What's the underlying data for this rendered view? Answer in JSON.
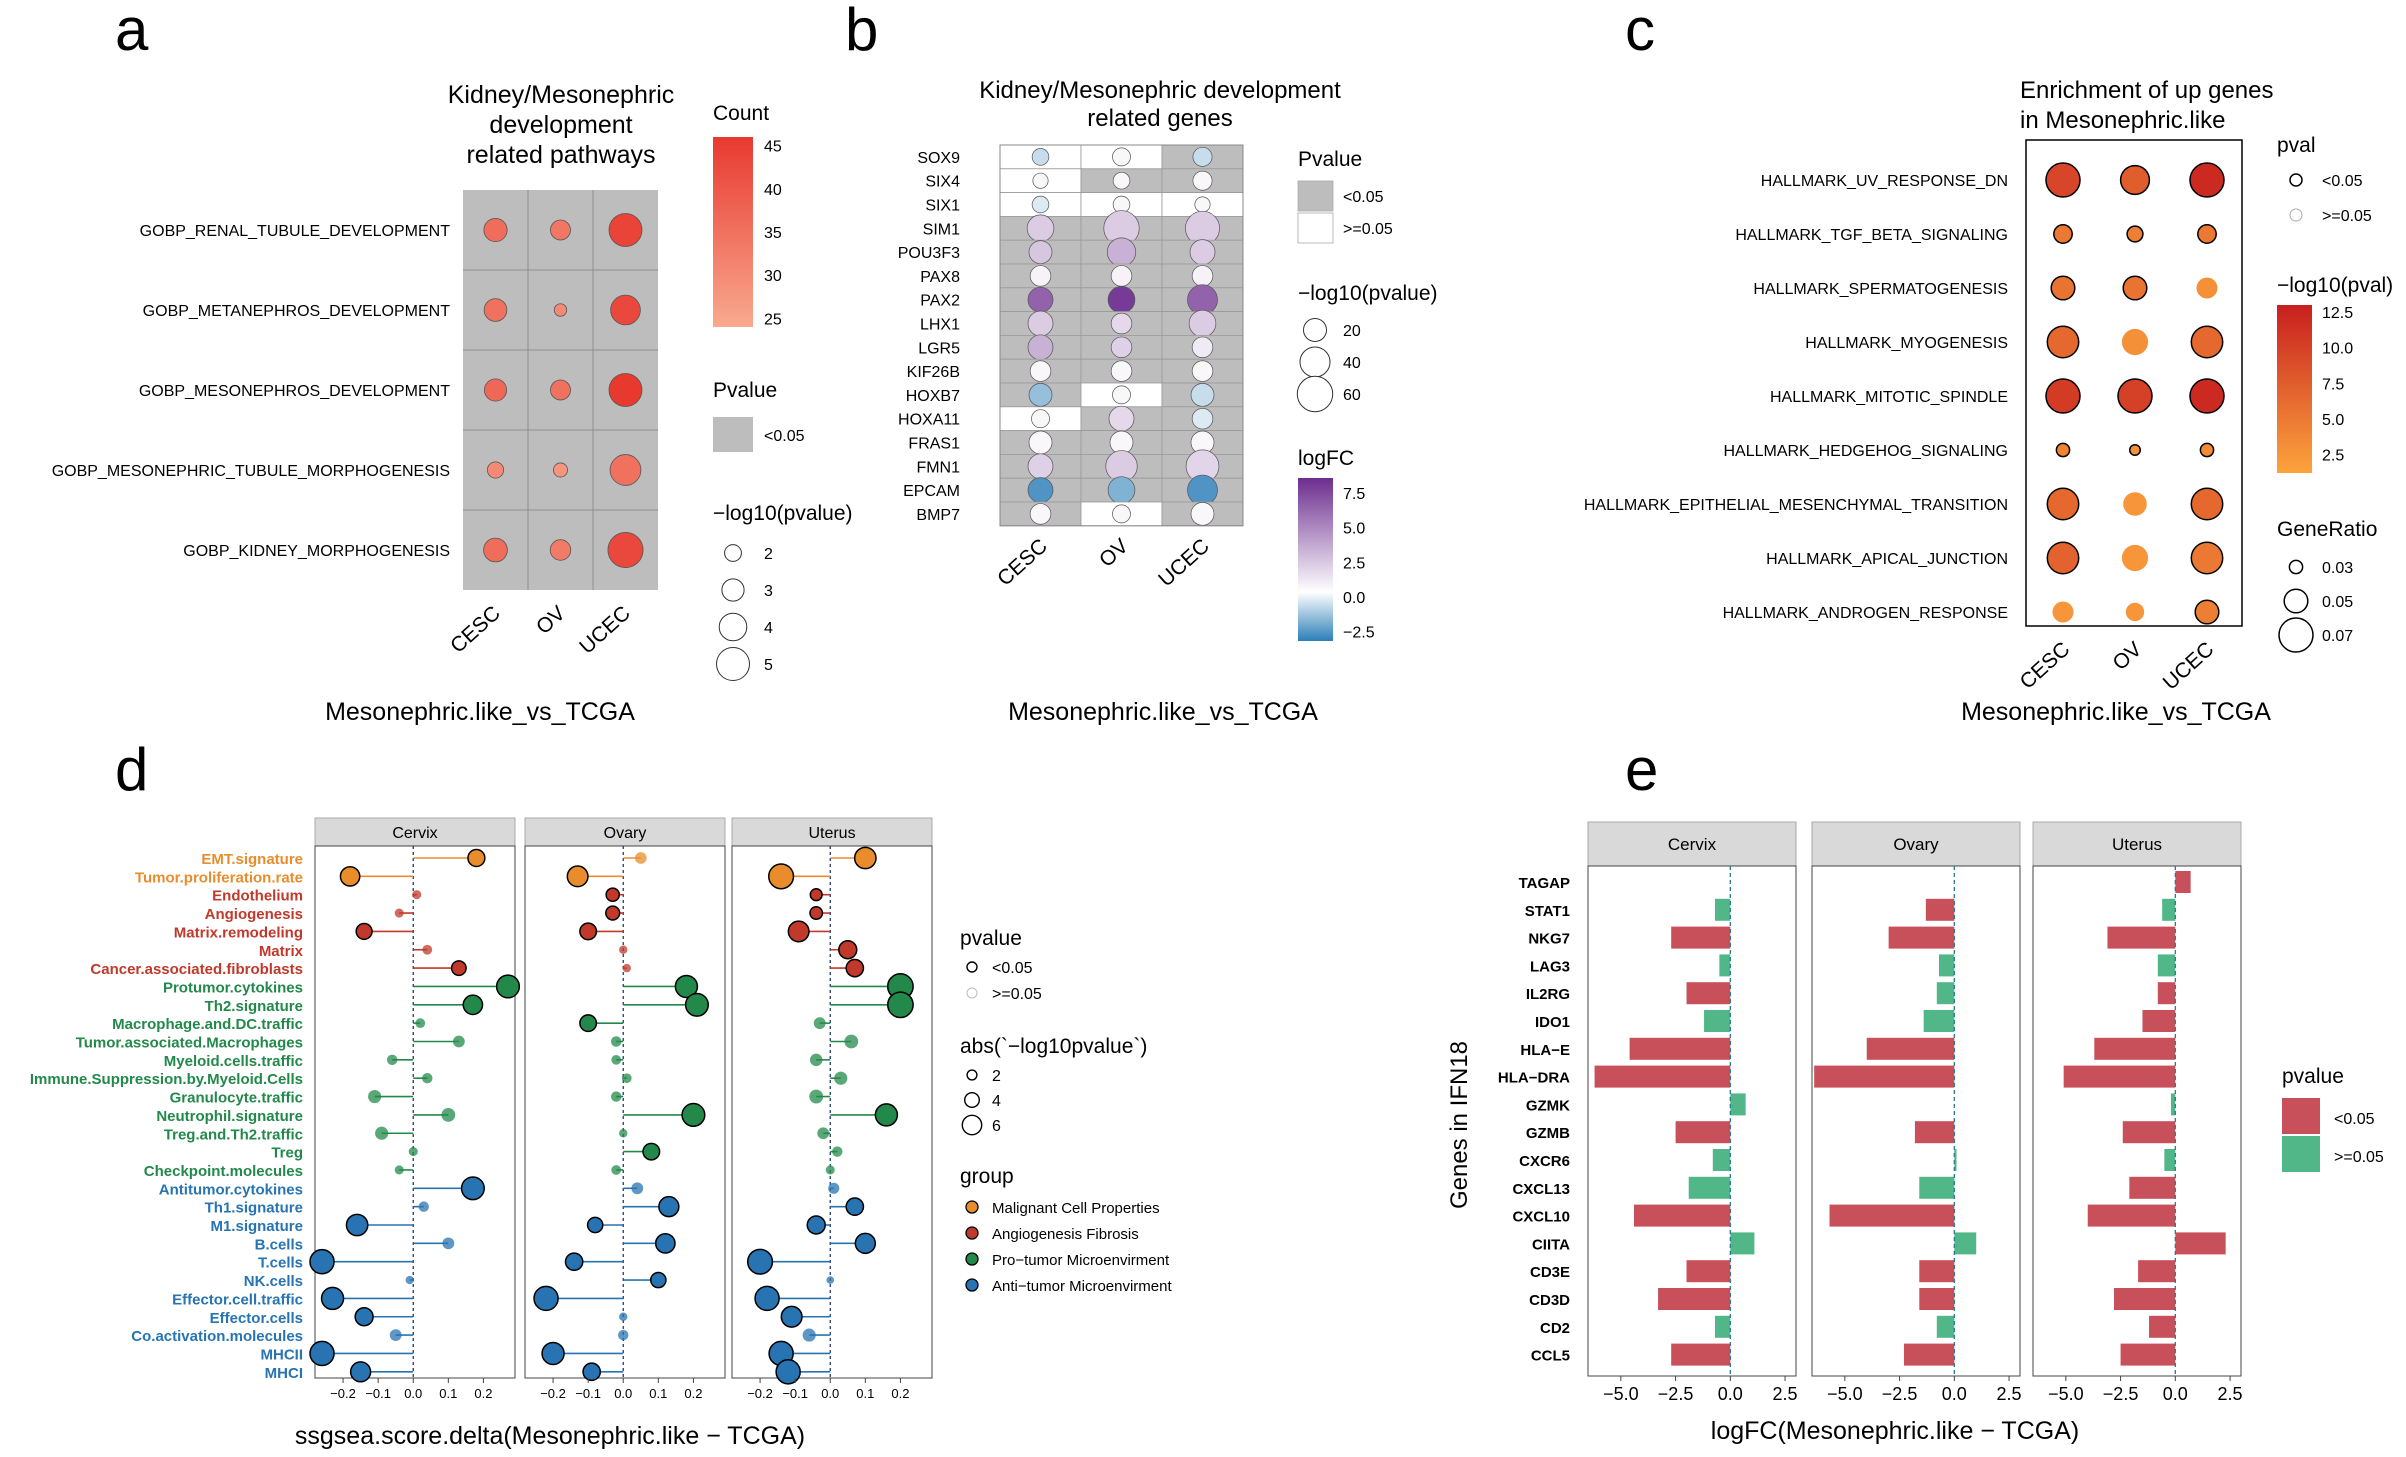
{
  "panel_letters": {
    "a": "a",
    "b": "b",
    "c": "c",
    "d": "d",
    "e": "e"
  },
  "colors": {
    "panel_bg": "#bdbdbd",
    "strip_bg": "#d9d9d9",
    "red_dot": "#e8392f",
    "sig_red": "#c8505b",
    "nonsig_green": "#52b788",
    "malignant": "#e98d2c",
    "angiogenesis": "#c0392b",
    "protumor": "#23894a",
    "antitumor": "#2874b2"
  },
  "chart_data": [
    {
      "id": "a",
      "type": "scatter",
      "title": [
        "Kidney/Mesonephric",
        "development",
        "related pathways"
      ],
      "xlabel": "Mesonephric.like_vs_TCGA",
      "categories": [
        "CESC",
        "OV",
        "UCEC"
      ],
      "rows": [
        "GOBP_RENAL_TUBULE_DEVELOPMENT",
        "GOBP_METANEPHROS_DEVELOPMENT",
        "GOBP_MESONEPHROS_DEVELOPMENT",
        "GOBP_MESONEPHRIC_TUBULE_MORPHOGENESIS",
        "GOBP_KIDNEY_MORPHOGENESIS"
      ],
      "count": [
        [
          36,
          34,
          44
        ],
        [
          35,
          30,
          43
        ],
        [
          37,
          35,
          47
        ],
        [
          30,
          28,
          35
        ],
        [
          36,
          33,
          43
        ]
      ],
      "neglog10p": [
        [
          3.2,
          2.6,
          5.0
        ],
        [
          3.1,
          1.2,
          4.4
        ],
        [
          3.0,
          2.6,
          5.0
        ],
        [
          1.9,
          1.5,
          4.6
        ],
        [
          3.3,
          2.7,
          5.4
        ]
      ],
      "legend": {
        "count_title": "Count",
        "count_ticks": [
          "45",
          "40",
          "35",
          "30",
          "25"
        ],
        "count_range": [
          24,
          46
        ],
        "pvalue_title": "Pvalue",
        "pvalue_items": [
          "<0.05"
        ],
        "size_title": "−log10(pvalue)",
        "size_values": [
          2,
          3,
          4,
          5
        ],
        "size_labels": [
          "2",
          "3",
          "4",
          "5"
        ]
      }
    },
    {
      "id": "b",
      "type": "heatmap",
      "title": [
        "Kidney/Mesonephric development",
        "related genes"
      ],
      "xlabel": "Mesonephric.like_vs_TCGA",
      "categories": [
        "CESC",
        "OV",
        "UCEC"
      ],
      "genes": [
        "SOX9",
        "SIX4",
        "SIX1",
        "SIM1",
        "POU3F3",
        "PAX8",
        "PAX2",
        "LHX1",
        "LGR5",
        "KIF26B",
        "HOXB7",
        "HOXA11",
        "FRAS1",
        "FMN1",
        "EPCAM",
        "BMP7"
      ],
      "significant": [
        [
          0,
          0,
          1
        ],
        [
          0,
          1,
          1
        ],
        [
          0,
          0,
          0
        ],
        [
          1,
          1,
          1
        ],
        [
          1,
          1,
          1
        ],
        [
          1,
          1,
          1
        ],
        [
          1,
          1,
          1
        ],
        [
          1,
          1,
          1
        ],
        [
          1,
          1,
          1
        ],
        [
          1,
          1,
          1
        ],
        [
          1,
          0,
          1
        ],
        [
          0,
          1,
          1
        ],
        [
          1,
          1,
          1
        ],
        [
          1,
          1,
          1
        ],
        [
          1,
          1,
          1
        ],
        [
          1,
          0,
          1
        ]
      ],
      "logFC": [
        [
          -0.8,
          0.3,
          -0.8
        ],
        [
          0.3,
          0.3,
          0.3
        ],
        [
          -0.5,
          0.3,
          0.3
        ],
        [
          2.0,
          2.0,
          2.0
        ],
        [
          2.2,
          3.0,
          2.0
        ],
        [
          0.5,
          0.5,
          0.5
        ],
        [
          6.0,
          7.5,
          6.0
        ],
        [
          2.0,
          1.5,
          2.0
        ],
        [
          3.0,
          1.8,
          0.8
        ],
        [
          0.3,
          0.3,
          0.3
        ],
        [
          -1.5,
          0.3,
          -0.8
        ],
        [
          0.3,
          1.5,
          -0.5
        ],
        [
          0.3,
          0.3,
          0.3
        ],
        [
          1.8,
          2.0,
          1.6
        ],
        [
          -2.5,
          -1.8,
          -2.5
        ],
        [
          0.3,
          0.3,
          0.3
        ]
      ],
      "neglog10p": [
        [
          8,
          10,
          12
        ],
        [
          6,
          8,
          12
        ],
        [
          8,
          8,
          6
        ],
        [
          30,
          60,
          55
        ],
        [
          20,
          35,
          25
        ],
        [
          15,
          15,
          15
        ],
        [
          25,
          30,
          40
        ],
        [
          25,
          15,
          30
        ],
        [
          25,
          15,
          15
        ],
        [
          15,
          15,
          15
        ],
        [
          20,
          10,
          20
        ],
        [
          10,
          25,
          15
        ],
        [
          20,
          20,
          20
        ],
        [
          25,
          45,
          50
        ],
        [
          25,
          30,
          40
        ],
        [
          15,
          10,
          20
        ]
      ],
      "legend": {
        "pvalue_title": "Pvalue",
        "pvalue_items": [
          "<0.05",
          ">=0.05"
        ],
        "size_title": "−log10(pvalue)",
        "size_values": [
          20,
          40,
          60
        ],
        "size_labels": [
          "20",
          "40",
          "60"
        ],
        "fc_title": "logFC",
        "fc_ticks": [
          "7.5",
          "5.0",
          "2.5",
          "0.0",
          "−2.5"
        ],
        "fc_range": [
          -3.2,
          8.6
        ]
      }
    },
    {
      "id": "c",
      "type": "scatter",
      "title": [
        "Enrichment of up genes",
        "in Mesonephric.like"
      ],
      "xlabel": "Mesonephric.like_vs_TCGA",
      "categories": [
        "CESC",
        "OV",
        "UCEC"
      ],
      "rows": [
        "HALLMARK_UV_RESPONSE_DN",
        "HALLMARK_TGF_BETA_SIGNALING",
        "HALLMARK_SPERMATOGENESIS",
        "HALLMARK_MYOGENESIS",
        "HALLMARK_MITOTIC_SPINDLE",
        "HALLMARK_HEDGEHOG_SIGNALING",
        "HALLMARK_EPITHELIAL_MESENCHYMAL_TRANSITION",
        "HALLMARK_APICAL_JUNCTION",
        "HALLMARK_ANDROGEN_RESPONSE"
      ],
      "neglog10pval": [
        [
          9.5,
          7.5,
          12.0
        ],
        [
          5.0,
          4.5,
          5.0
        ],
        [
          5.5,
          5.5,
          3.0
        ],
        [
          6.5,
          3.0,
          6.5
        ],
        [
          10.5,
          10.0,
          12.0
        ],
        [
          4.0,
          3.0,
          3.5
        ],
        [
          6.5,
          2.5,
          6.5
        ],
        [
          7.0,
          2.5,
          5.0
        ],
        [
          2.5,
          2.5,
          4.5
        ]
      ],
      "gene_ratio": [
        [
          0.07,
          0.06,
          0.07
        ],
        [
          0.04,
          0.035,
          0.04
        ],
        [
          0.05,
          0.05,
          0.045
        ],
        [
          0.065,
          0.055,
          0.065
        ],
        [
          0.07,
          0.07,
          0.07
        ],
        [
          0.03,
          0.025,
          0.03
        ],
        [
          0.065,
          0.05,
          0.065
        ],
        [
          0.065,
          0.055,
          0.065
        ],
        [
          0.045,
          0.04,
          0.05
        ]
      ],
      "significant": [
        [
          1,
          1,
          1
        ],
        [
          1,
          1,
          1
        ],
        [
          1,
          1,
          0
        ],
        [
          1,
          0,
          1
        ],
        [
          1,
          1,
          1
        ],
        [
          1,
          1,
          1
        ],
        [
          1,
          0,
          1
        ],
        [
          1,
          0,
          1
        ],
        [
          0,
          0,
          1
        ]
      ],
      "legend": {
        "pval_title": "pval",
        "pval_items": [
          "<0.05",
          ">=0.05"
        ],
        "color_title": "−log10(pval)",
        "color_ticks": [
          "12.5",
          "10.0",
          "7.5",
          "5.0",
          "2.5"
        ],
        "color_range": [
          1.2,
          13.0
        ],
        "ratio_title": "GeneRatio",
        "ratio_values": [
          0.03,
          0.05,
          0.07
        ],
        "ratio_labels": [
          "0.03",
          "0.05",
          "0.07"
        ]
      }
    },
    {
      "id": "d",
      "type": "scatter",
      "xlabel": "ssgsea.score.delta(Mesonephric.like − TCGA)",
      "facets": [
        "Cervix",
        "Ovary",
        "Uterus"
      ],
      "xlim": [
        -0.28,
        0.29
      ],
      "xticks": [
        -0.2,
        -0.1,
        0.0,
        0.1,
        0.2
      ],
      "xtick_labels": [
        "−0.2",
        "−0.1",
        "0.0",
        "0.1",
        "0.2"
      ],
      "signatures": [
        "EMT.signature",
        "Tumor.proliferation.rate",
        "Endothelium",
        "Angiogenesis",
        "Matrix.remodeling",
        "Matrix",
        "Cancer.associated.fibroblasts",
        "Protumor.cytokines",
        "Th2.signature",
        "Macrophage.and.DC.traffic",
        "Tumor.associated.Macrophages",
        "Myeloid.cells.traffic",
        "Immune.Suppression.by.Myeloid.Cells",
        "Granulocyte.traffic",
        "Neutrophil.signature",
        "Treg.and.Th2.traffic",
        "Treg",
        "Checkpoint.molecules",
        "Antitumor.cytokines",
        "Th1.signature",
        "M1.signature",
        "B.cells",
        "T.cells",
        "NK.cells",
        "Effector.cell.traffic",
        "Effector.cells",
        "Co.activation.molecules",
        "MHCII",
        "MHCI"
      ],
      "groups": [
        0,
        0,
        1,
        1,
        1,
        1,
        1,
        2,
        2,
        2,
        2,
        2,
        2,
        2,
        2,
        2,
        2,
        2,
        3,
        3,
        3,
        3,
        3,
        3,
        3,
        3,
        3,
        3,
        3
      ],
      "group_names": [
        "Malignant Cell Properties",
        "Angiogenesis Fibrosis",
        "Pro−tumor Microenvirment",
        "Anti−tumor Microenvirment"
      ],
      "delta": {
        "Cervix": [
          0.18,
          -0.18,
          0.01,
          -0.04,
          -0.14,
          0.04,
          0.13,
          0.27,
          0.17,
          0.02,
          0.13,
          -0.06,
          0.04,
          -0.11,
          0.1,
          -0.09,
          0.0,
          -0.04,
          0.17,
          0.03,
          -0.16,
          0.1,
          -0.26,
          -0.01,
          -0.23,
          -0.14,
          -0.05,
          -0.26,
          -0.15
        ],
        "Ovary": [
          0.05,
          -0.13,
          -0.03,
          -0.03,
          -0.1,
          0.0,
          0.01,
          0.18,
          0.21,
          -0.1,
          -0.02,
          -0.02,
          0.01,
          -0.02,
          0.2,
          0.0,
          0.08,
          -0.02,
          0.04,
          0.13,
          -0.08,
          0.12,
          -0.14,
          0.1,
          -0.22,
          0.0,
          0.0,
          -0.2,
          -0.09
        ],
        "Uterus": [
          0.1,
          -0.14,
          -0.04,
          -0.04,
          -0.09,
          0.05,
          0.07,
          0.2,
          0.2,
          -0.03,
          0.06,
          -0.04,
          0.03,
          -0.04,
          0.16,
          -0.02,
          0.02,
          0.0,
          0.01,
          0.07,
          -0.04,
          0.1,
          -0.2,
          0.0,
          -0.18,
          -0.11,
          -0.06,
          -0.14,
          -0.12
        ]
      },
      "significant": {
        "Cervix": [
          1,
          1,
          0,
          0,
          1,
          0,
          1,
          1,
          1,
          0,
          0,
          0,
          0,
          0,
          0,
          0,
          0,
          0,
          1,
          0,
          1,
          0,
          1,
          0,
          1,
          1,
          0,
          1,
          1
        ],
        "Ovary": [
          0,
          1,
          1,
          1,
          1,
          0,
          0,
          1,
          1,
          1,
          0,
          0,
          0,
          0,
          1,
          0,
          1,
          0,
          0,
          1,
          1,
          1,
          1,
          1,
          1,
          0,
          0,
          1,
          1
        ],
        "Uterus": [
          1,
          1,
          1,
          1,
          1,
          1,
          1,
          1,
          1,
          0,
          0,
          0,
          0,
          0,
          1,
          0,
          0,
          0,
          0,
          1,
          1,
          1,
          1,
          0,
          1,
          1,
          0,
          1,
          1
        ]
      },
      "neglog10p": {
        "Cervix": [
          3.5,
          4.2,
          1.2,
          1.2,
          3.2,
          1.4,
          2.8,
          5.2,
          4.2,
          1.4,
          2.0,
          1.6,
          1.6,
          2.4,
          2.6,
          2.4,
          1.2,
          1.2,
          5.2,
          1.6,
          4.8,
          2.0,
          5.6,
          1.0,
          5.0,
          3.8,
          2.0,
          5.6,
          4.4
        ],
        "Ovary": [
          2.0,
          4.6,
          2.4,
          2.6,
          3.4,
          1.0,
          1.0,
          5.0,
          5.2,
          3.4,
          1.6,
          1.4,
          1.4,
          1.6,
          5.2,
          1.0,
          3.4,
          1.4,
          2.0,
          4.4,
          3.0,
          4.2,
          3.6,
          3.0,
          5.6,
          1.0,
          1.6,
          5.0,
          3.6
        ],
        "Uterus": [
          4.8,
          5.8,
          2.0,
          2.2,
          4.6,
          3.8,
          3.6,
          6.0,
          6.0,
          2.0,
          2.6,
          2.2,
          2.4,
          2.6,
          5.0,
          2.0,
          1.6,
          1.2,
          1.8,
          3.6,
          3.8,
          4.4,
          5.8,
          0.8,
          5.6,
          4.6,
          2.4,
          5.6,
          5.6
        ]
      },
      "legend": {
        "pvalue_title": "pvalue",
        "pvalue_items": [
          "<0.05",
          ">=0.05"
        ],
        "size_title": "abs(`−log10pvalue`)",
        "size_values": [
          2,
          4,
          6
        ],
        "size_labels": [
          "2",
          "4",
          "6"
        ],
        "group_title": "group"
      }
    },
    {
      "id": "e",
      "type": "bar",
      "orientation": "horizontal",
      "xlabel": "logFC(Mesonephric.like − TCGA)",
      "ylabel": "Genes in IFN18",
      "facets": [
        "Cervix",
        "Ovary",
        "Uterus"
      ],
      "xlim": [
        -6.5,
        3.0
      ],
      "xticks": [
        -5.0,
        -2.5,
        0.0,
        2.5
      ],
      "xtick_labels": [
        "−5.0",
        "−2.5",
        "0.0",
        "2.5"
      ],
      "genes": [
        "TAGAP",
        "STAT1",
        "NKG7",
        "LAG3",
        "IL2RG",
        "IDO1",
        "HLA−E",
        "HLA−DRA",
        "GZMK",
        "GZMB",
        "CXCR6",
        "CXCL13",
        "CXCL10",
        "CIITA",
        "CD3E",
        "CD3D",
        "CD2",
        "CCL5"
      ],
      "values": {
        "Cervix": [
          0.0,
          -0.7,
          -2.7,
          -0.5,
          -2.0,
          -1.2,
          -4.6,
          -6.2,
          0.7,
          -2.5,
          -0.8,
          -1.9,
          -4.4,
          1.1,
          -2.0,
          -3.3,
          -0.7,
          -2.7
        ],
        "Ovary": [
          0.0,
          -1.3,
          -3.0,
          -0.7,
          -0.8,
          -1.4,
          -4.0,
          -6.4,
          0.0,
          -1.8,
          0.1,
          -1.6,
          -5.7,
          1.0,
          -1.6,
          -1.6,
          -0.8,
          -2.3
        ],
        "Uterus": [
          0.7,
          -0.6,
          -3.1,
          -0.8,
          -0.8,
          -1.5,
          -3.7,
          -5.1,
          -0.2,
          -2.4,
          -0.5,
          -2.1,
          -4.0,
          2.3,
          -1.7,
          -2.8,
          -1.2,
          -2.5
        ]
      },
      "significant": {
        "Cervix": [
          0,
          0,
          1,
          0,
          1,
          0,
          1,
          1,
          0,
          1,
          0,
          0,
          1,
          0,
          1,
          1,
          0,
          1
        ],
        "Ovary": [
          0,
          1,
          1,
          0,
          0,
          0,
          1,
          1,
          0,
          1,
          0,
          0,
          1,
          0,
          1,
          1,
          0,
          1
        ],
        "Uterus": [
          1,
          0,
          1,
          0,
          1,
          1,
          1,
          1,
          0,
          1,
          0,
          1,
          1,
          1,
          1,
          1,
          1,
          1
        ]
      },
      "legend": {
        "pvalue_title": "pvalue",
        "pvalue_items": [
          "<0.05",
          ">=0.05"
        ]
      }
    }
  ]
}
